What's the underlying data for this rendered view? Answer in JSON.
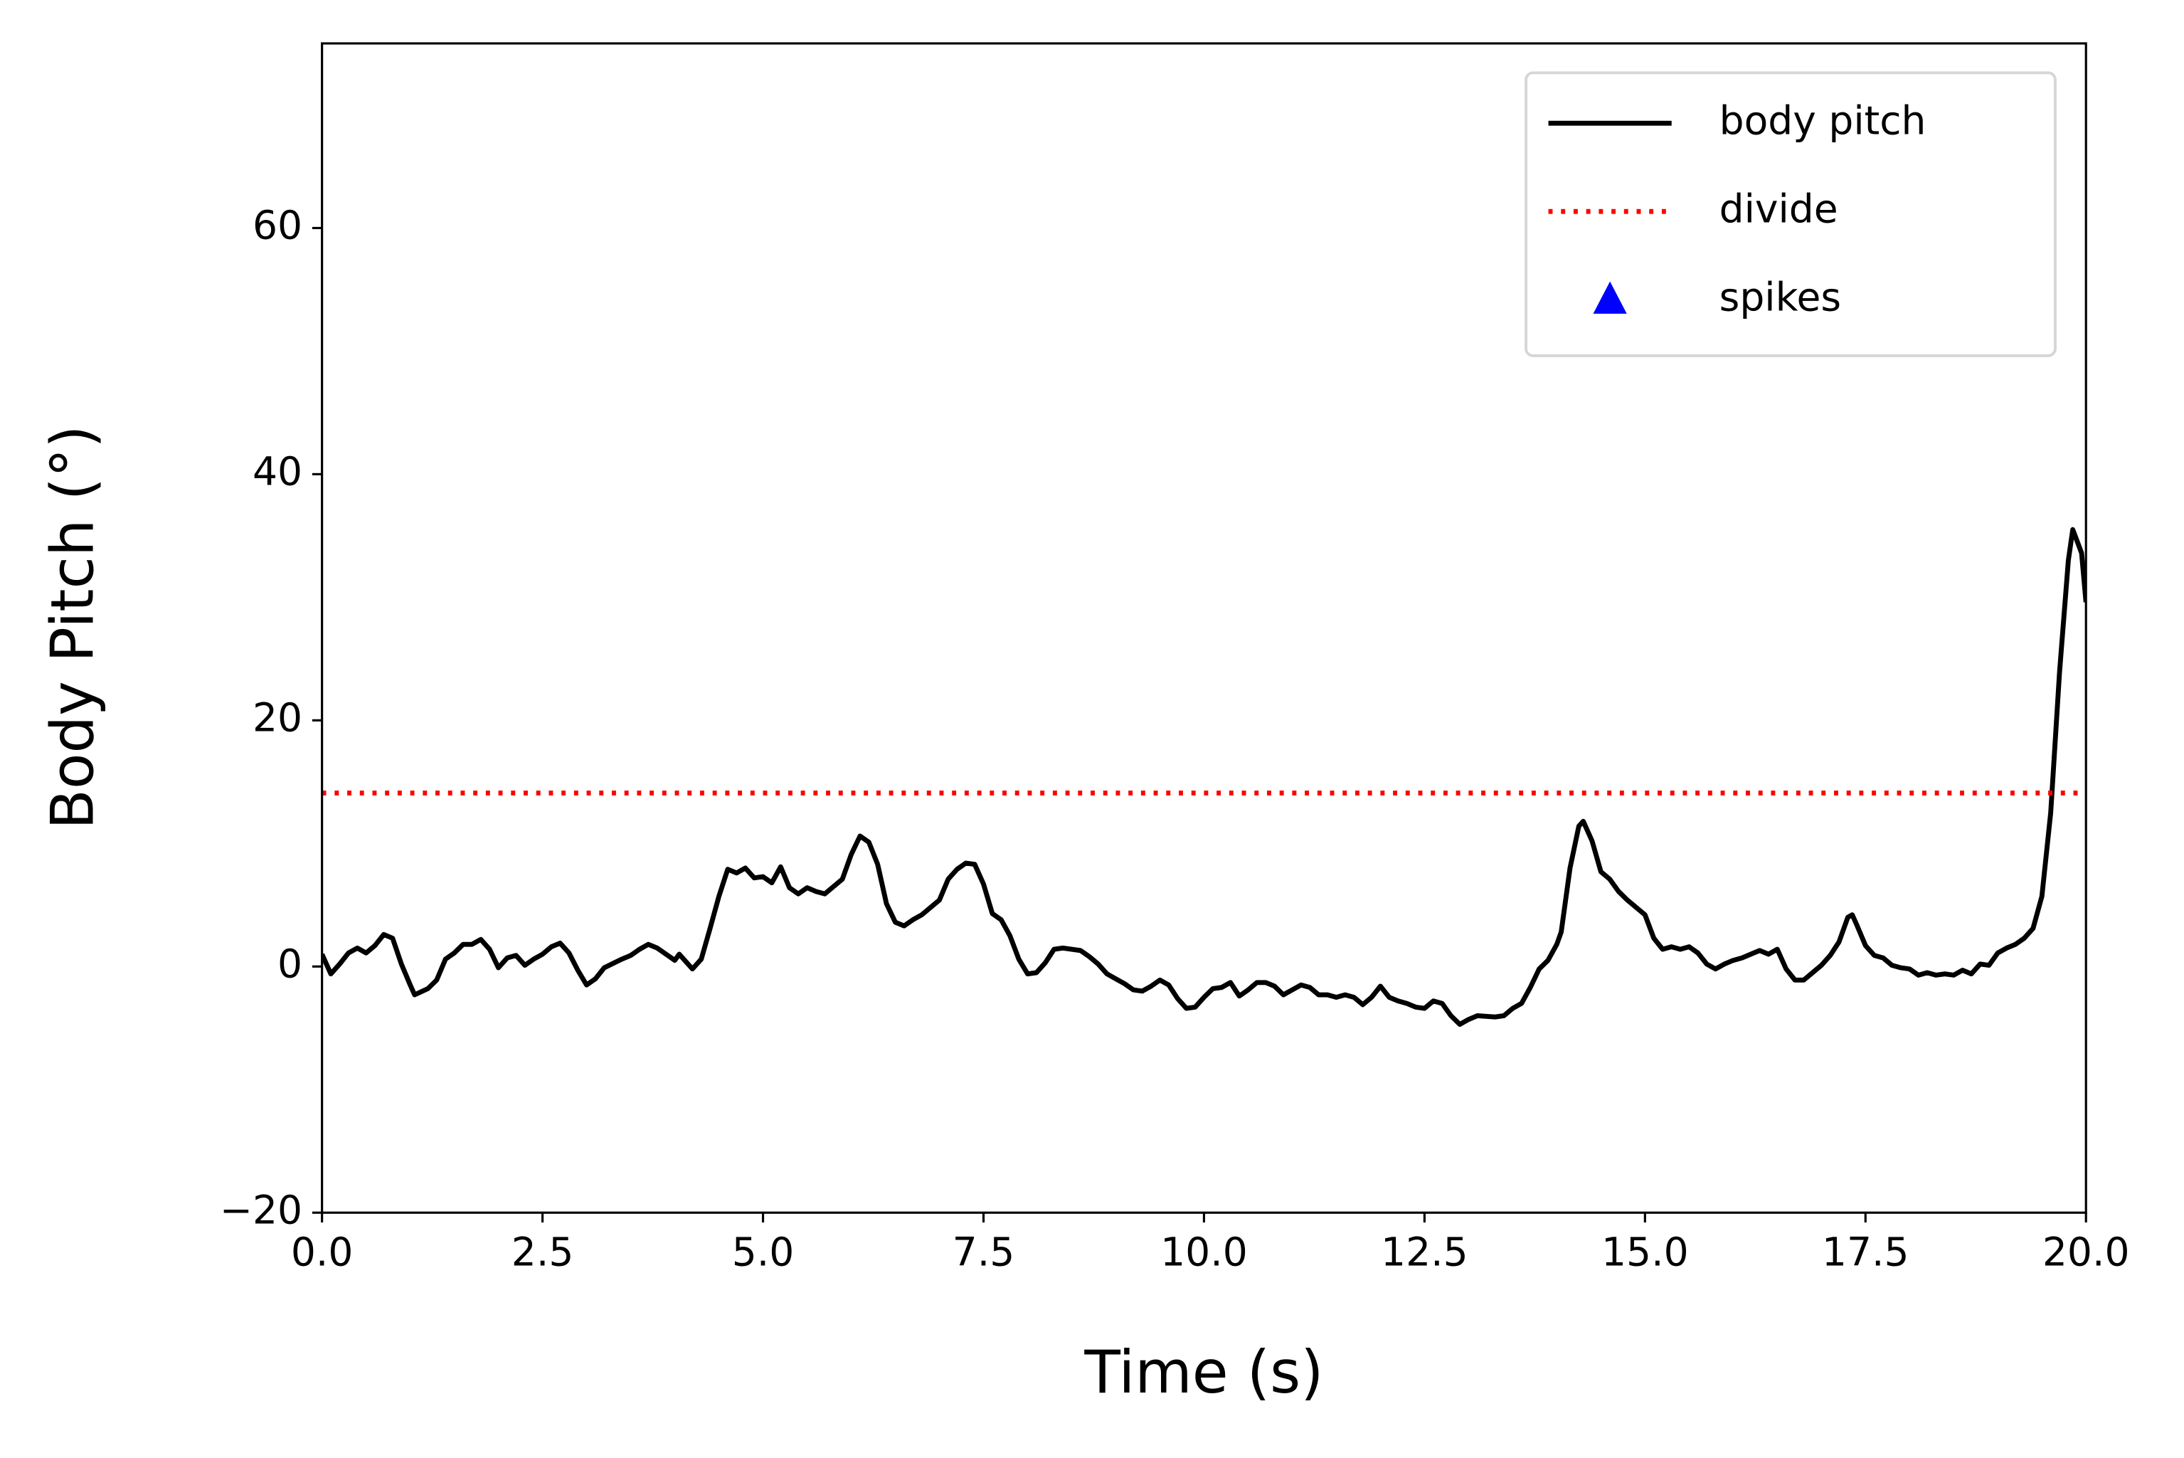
{
  "chart_data": {
    "type": "line",
    "xlabel": "Time (s)",
    "ylabel": "Body Pitch (°)",
    "xlim": [
      0,
      20
    ],
    "ylim": [
      -20,
      75
    ],
    "xticks": [
      {
        "value": 0,
        "label": "0.0"
      },
      2.5,
      {
        "value": 5,
        "label": "5.0"
      },
      7.5,
      {
        "value": 10,
        "label": "10.0"
      },
      12.5,
      {
        "value": 15,
        "label": "15.0"
      },
      17.5,
      {
        "value": 20,
        "label": "20.0"
      }
    ],
    "yticks": [
      {
        "value": -20,
        "label": "−20"
      },
      0,
      20,
      40,
      60
    ],
    "legend": "upper right",
    "series": [
      {
        "name": "body pitch",
        "color": "#000000",
        "style": "solid",
        "x": [
          0,
          0.1,
          0.2,
          0.3,
          0.4,
          0.5,
          0.6,
          0.7,
          0.8,
          0.9,
          1.0,
          1.05,
          1.2,
          1.3,
          1.4,
          1.5,
          1.6,
          1.7,
          1.8,
          1.9,
          2.0,
          2.1,
          2.2,
          2.3,
          2.4,
          2.5,
          2.6,
          2.7,
          2.8,
          2.9,
          3.0,
          3.1,
          3.2,
          3.4,
          3.5,
          3.6,
          3.7,
          3.8,
          3.9,
          4.0,
          4.05,
          4.2,
          4.3,
          4.4,
          4.5,
          4.6,
          4.7,
          4.8,
          4.9,
          5.0,
          5.1,
          5.2,
          5.3,
          5.4,
          5.5,
          5.6,
          5.7,
          5.8,
          5.9,
          6.0,
          6.1,
          6.2,
          6.3,
          6.4,
          6.5,
          6.6,
          6.7,
          6.8,
          6.9,
          7.0,
          7.1,
          7.2,
          7.3,
          7.4,
          7.5,
          7.6,
          7.7,
          7.8,
          7.9,
          8.0,
          8.1,
          8.2,
          8.3,
          8.4,
          8.5,
          8.6,
          8.7,
          8.8,
          8.9,
          9.0,
          9.1,
          9.2,
          9.3,
          9.4,
          9.5,
          9.6,
          9.7,
          9.8,
          9.9,
          10.0,
          10.1,
          10.2,
          10.3,
          10.4,
          10.5,
          10.6,
          10.7,
          10.8,
          10.9,
          11.0,
          11.1,
          11.2,
          11.3,
          11.4,
          11.5,
          11.6,
          11.7,
          11.8,
          11.9,
          12.0,
          12.1,
          12.2,
          12.3,
          12.4,
          12.5,
          12.6,
          12.7,
          12.8,
          12.9,
          13.0,
          13.1,
          13.3,
          13.4,
          13.5,
          13.6,
          13.7,
          13.8,
          13.9,
          14.0,
          14.05,
          14.15,
          14.25,
          14.3,
          14.4,
          14.5,
          14.6,
          14.7,
          14.8,
          14.9,
          15.0,
          15.1,
          15.2,
          15.3,
          15.4,
          15.5,
          15.6,
          15.7,
          15.8,
          15.9,
          16.0,
          16.1,
          16.2,
          16.3,
          16.4,
          16.5,
          16.6,
          16.7,
          16.8,
          16.9,
          17.0,
          17.1,
          17.2,
          17.3,
          17.35,
          17.4,
          17.5,
          17.6,
          17.7,
          17.8,
          17.9,
          18.0,
          18.1,
          18.2,
          18.3,
          18.4,
          18.5,
          18.6,
          18.7,
          18.8,
          18.9,
          19.0,
          19.1,
          19.2,
          19.3,
          19.4,
          19.5,
          19.6,
          19.7,
          19.8,
          19.85,
          19.95,
          20.0
        ],
        "values": [
          1.0,
          -0.6,
          0.2,
          1.1,
          1.5,
          1.1,
          1.7,
          2.6,
          2.3,
          0.2,
          -1.5,
          -2.3,
          -1.8,
          -1.1,
          0.6,
          1.1,
          1.8,
          1.8,
          2.2,
          1.4,
          -0.1,
          0.7,
          0.9,
          0.1,
          0.6,
          1.0,
          1.6,
          1.9,
          1.1,
          -0.3,
          -1.5,
          -1.0,
          -0.1,
          0.6,
          0.9,
          1.4,
          1.8,
          1.5,
          1.0,
          0.5,
          1.0,
          -0.2,
          0.6,
          3.1,
          5.7,
          7.9,
          7.6,
          8.0,
          7.2,
          7.3,
          6.8,
          8.1,
          6.4,
          5.9,
          6.4,
          6.1,
          5.9,
          6.5,
          7.1,
          9.1,
          10.6,
          10.1,
          8.3,
          5.1,
          3.6,
          3.3,
          3.8,
          4.2,
          4.8,
          5.4,
          7.1,
          7.9,
          8.4,
          8.3,
          6.7,
          4.3,
          3.8,
          2.5,
          0.6,
          -0.6,
          -0.5,
          0.3,
          1.4,
          1.5,
          1.4,
          1.3,
          0.8,
          0.2,
          -0.6,
          -1.0,
          -1.4,
          -1.9,
          -2.0,
          -1.6,
          -1.1,
          -1.5,
          -2.6,
          -3.4,
          -3.3,
          -2.5,
          -1.8,
          -1.7,
          -1.3,
          -2.4,
          -1.9,
          -1.3,
          -1.3,
          -1.6,
          -2.3,
          -1.9,
          -1.5,
          -1.7,
          -2.3,
          -2.3,
          -2.5,
          -2.3,
          -2.5,
          -3.1,
          -2.5,
          -1.6,
          -2.5,
          -2.8,
          -3.0,
          -3.3,
          -3.4,
          -2.8,
          -3.0,
          -4.0,
          -4.7,
          -4.3,
          -4.0,
          -4.1,
          -4.0,
          -3.4,
          -3.0,
          -1.7,
          -0.2,
          0.5,
          1.8,
          2.8,
          8.0,
          11.4,
          11.8,
          10.2,
          7.7,
          7.1,
          6.1,
          5.4,
          4.8,
          4.2,
          2.3,
          1.4,
          1.6,
          1.4,
          1.6,
          1.1,
          0.2,
          -0.2,
          0.2,
          0.5,
          0.7,
          1.0,
          1.3,
          1.0,
          1.4,
          -0.2,
          -1.1,
          -1.1,
          -0.5,
          0.1,
          0.9,
          2.0,
          4.0,
          4.2,
          3.4,
          1.7,
          0.9,
          0.7,
          0.1,
          -0.1,
          -0.2,
          -0.7,
          -0.5,
          -0.7,
          -0.6,
          -0.7,
          -0.3,
          -0.6,
          0.2,
          0.1,
          1.1,
          1.5,
          1.8,
          2.3,
          3.1,
          5.7,
          12.5,
          23.9,
          33.0,
          35.5,
          33.6,
          29.6
        ]
      },
      {
        "name": "divide",
        "color": "#ff0000",
        "style": "dotted",
        "x": [
          0,
          20
        ],
        "values": [
          14.1,
          14.1
        ]
      },
      {
        "name": "spikes",
        "color": "#0000ff",
        "marker": "triangle",
        "x": [],
        "values": []
      }
    ]
  }
}
